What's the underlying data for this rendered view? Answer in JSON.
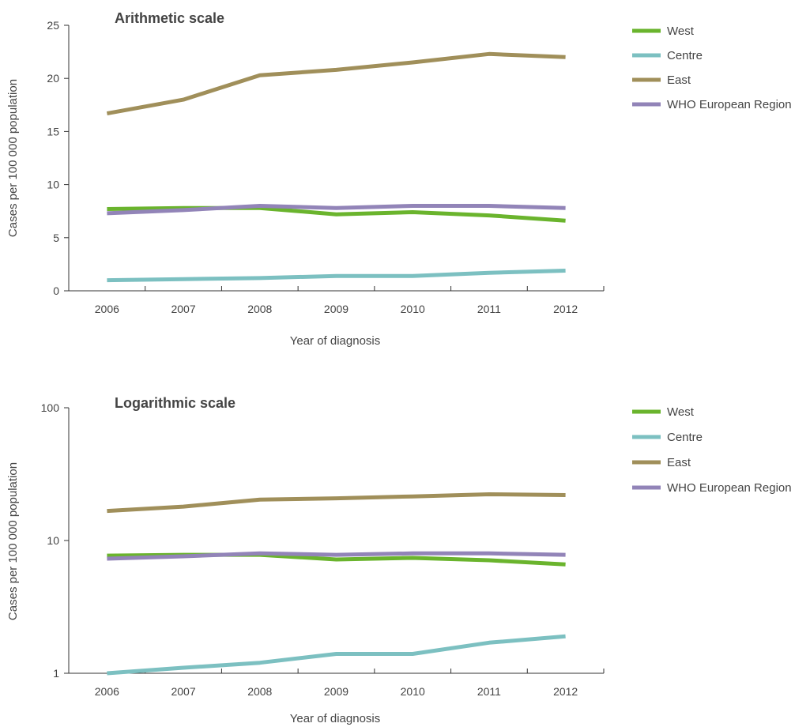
{
  "chart_data": [
    {
      "type": "line",
      "title": "Arithmetic scale",
      "xlabel": "Year of diagnosis",
      "ylabel": "Cases per 100 000 population",
      "yscale": "linear",
      "ylim": [
        0,
        25
      ],
      "yticks": [
        "0",
        "5",
        "10",
        "15",
        "20",
        "25"
      ],
      "categories": [
        "2006",
        "2007",
        "2008",
        "2009",
        "2010",
        "2011",
        "2012"
      ],
      "legend_position": "right",
      "grid": false,
      "series": [
        {
          "name": "West",
          "color": "#6ab42d",
          "values": [
            7.7,
            7.8,
            7.8,
            7.2,
            7.4,
            7.1,
            6.6
          ]
        },
        {
          "name": "Centre",
          "color": "#7cc0c1",
          "values": [
            1.0,
            1.1,
            1.2,
            1.4,
            1.4,
            1.7,
            1.9
          ]
        },
        {
          "name": "East",
          "color": "#a08f5a",
          "values": [
            16.7,
            18.0,
            20.3,
            20.8,
            21.5,
            22.3,
            22.0
          ]
        },
        {
          "name": "WHO European Region",
          "color": "#9284b8",
          "values": [
            7.3,
            7.6,
            8.0,
            7.8,
            8.0,
            8.0,
            7.8
          ]
        }
      ]
    },
    {
      "type": "line",
      "title": "Logarithmic scale",
      "xlabel": "Year of diagnosis",
      "ylabel": "Cases per 100 000 population",
      "yscale": "log",
      "ylim": [
        1,
        100
      ],
      "yticks": [
        "1",
        "10",
        "100"
      ],
      "categories": [
        "2006",
        "2007",
        "2008",
        "2009",
        "2010",
        "2011",
        "2012"
      ],
      "legend_position": "right",
      "grid": false,
      "series": [
        {
          "name": "West",
          "color": "#6ab42d",
          "values": [
            7.7,
            7.8,
            7.8,
            7.2,
            7.4,
            7.1,
            6.6
          ]
        },
        {
          "name": "Centre",
          "color": "#7cc0c1",
          "values": [
            1.0,
            1.1,
            1.2,
            1.4,
            1.4,
            1.7,
            1.9
          ]
        },
        {
          "name": "East",
          "color": "#a08f5a",
          "values": [
            16.7,
            18.0,
            20.3,
            20.8,
            21.5,
            22.3,
            22.0
          ]
        },
        {
          "name": "WHO European Region",
          "color": "#9284b8",
          "values": [
            7.3,
            7.6,
            8.0,
            7.8,
            8.0,
            8.0,
            7.8
          ]
        }
      ]
    }
  ]
}
